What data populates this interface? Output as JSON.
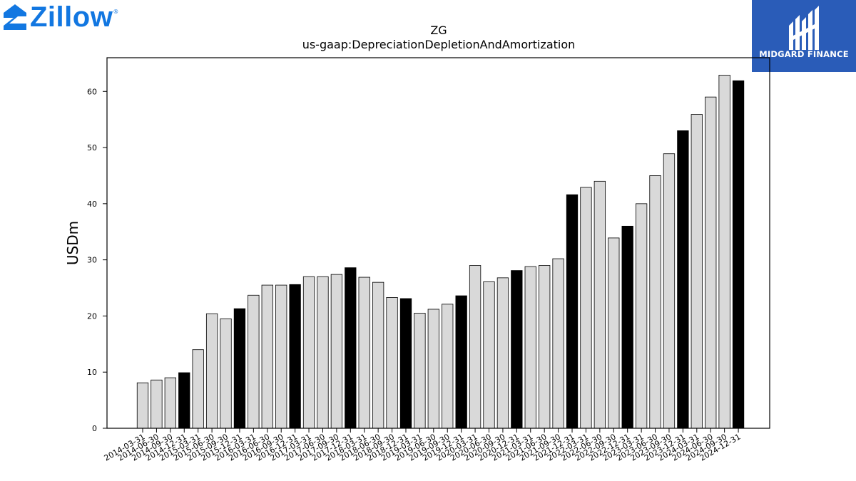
{
  "branding": {
    "zillow_wordmark": "Zillow",
    "zillow_reg": "®",
    "midgard_name": "MIDGARD FINANCE",
    "zillow_color": "#1277e1",
    "midgard_color": "#2a5cb8"
  },
  "chart_data": {
    "type": "bar",
    "title": "ZG",
    "subtitle": "us-gaap:DepreciationDepletionAndAmortization",
    "xlabel": "",
    "ylabel": "USDm",
    "ylim": [
      0,
      66
    ],
    "yticks": [
      0,
      10,
      20,
      30,
      40,
      50,
      60
    ],
    "grid": false,
    "colors": {
      "quarter": "#d9d9d9",
      "year_end": "#000000",
      "edge": "#000000"
    },
    "categories": [
      "2014-03-31",
      "2014-06-30",
      "2014-09-30",
      "2014-12-31",
      "2015-03-31",
      "2015-06-30",
      "2015-09-30",
      "2015-12-31",
      "2016-03-31",
      "2016-06-30",
      "2016-09-30",
      "2016-12-31",
      "2017-03-31",
      "2017-06-30",
      "2017-09-30",
      "2017-12-31",
      "2018-03-31",
      "2018-06-30",
      "2018-09-30",
      "2018-12-31",
      "2019-03-31",
      "2019-06-30",
      "2019-09-30",
      "2019-12-31",
      "2020-03-31",
      "2020-06-30",
      "2020-09-30",
      "2020-12-31",
      "2021-03-31",
      "2021-06-30",
      "2021-09-30",
      "2021-12-31",
      "2022-03-31",
      "2022-06-30",
      "2022-09-30",
      "2022-12-31",
      "2023-03-31",
      "2023-06-30",
      "2023-09-30",
      "2023-12-31",
      "2024-03-31",
      "2024-06-30",
      "2024-09-30",
      "2024-12-31"
    ],
    "values": [
      8.1,
      8.6,
      9.0,
      9.9,
      14.0,
      20.4,
      19.5,
      21.3,
      23.7,
      25.5,
      25.5,
      25.6,
      27.0,
      27.0,
      27.4,
      28.6,
      26.9,
      26.0,
      23.3,
      23.1,
      20.5,
      21.2,
      22.1,
      23.6,
      29.0,
      26.1,
      26.8,
      28.1,
      28.8,
      29.0,
      30.2,
      41.6,
      42.9,
      44.0,
      33.9,
      36.0,
      40.0,
      45.0,
      48.9,
      53.0,
      55.9,
      59.0,
      62.9,
      61.9
    ],
    "year_end": [
      false,
      false,
      false,
      true,
      false,
      false,
      false,
      true,
      false,
      false,
      false,
      true,
      false,
      false,
      false,
      true,
      false,
      false,
      false,
      true,
      false,
      false,
      false,
      true,
      false,
      false,
      false,
      true,
      false,
      false,
      false,
      true,
      false,
      false,
      false,
      true,
      false,
      false,
      false,
      true,
      false,
      false,
      false,
      true
    ]
  }
}
